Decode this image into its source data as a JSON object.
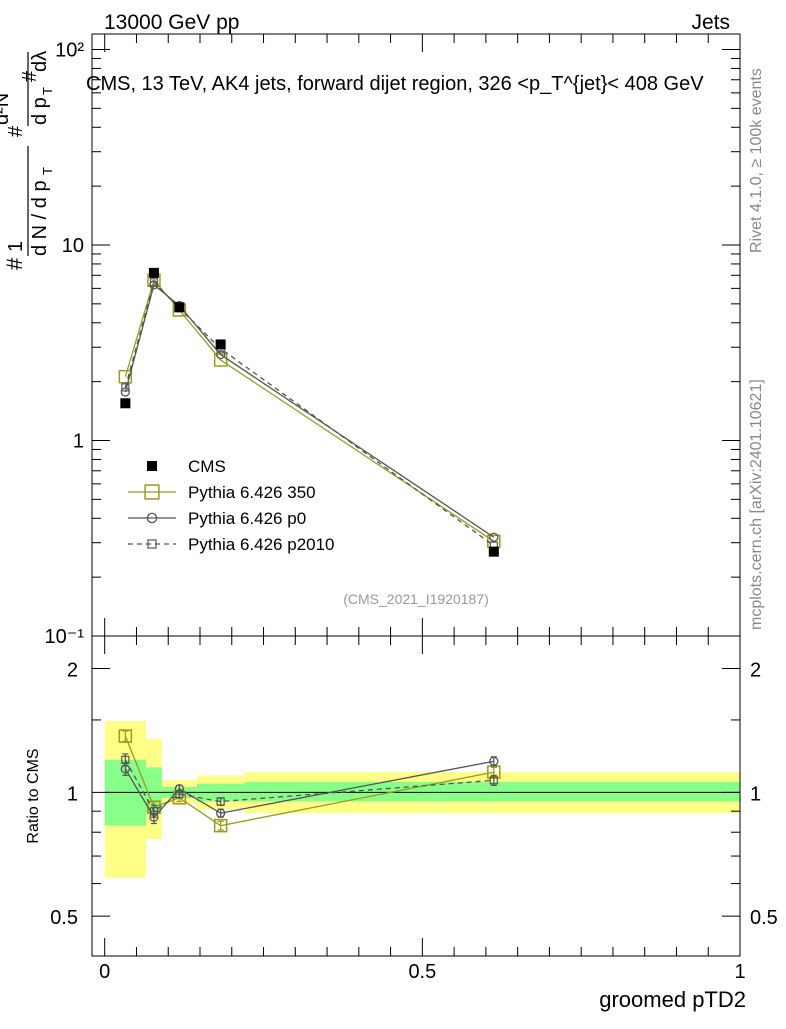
{
  "header": {
    "left": "13000 GeV pp",
    "right": "Jets"
  },
  "side": {
    "rivet": "Rivet 4.1.0, ≥ 100k events",
    "mcplots": "mcplots.cern.ch [arXiv:2401.10621]"
  },
  "colors": {
    "cms": "#000000",
    "p350": "#9a9a1e",
    "p0": "#555555",
    "p2010": "#555555",
    "band_yellow": "#ffff88",
    "band_green": "#88ff88"
  },
  "chart_data": [
    {
      "type": "scatter",
      "title": "CMS, 13 TeV, AK4 jets, forward dijet region, 326 <p_T^{jet}< 408 GeV",
      "ylabel": "1/(dN/dp_T) d²N/(dp_T dλ)",
      "yscale": "log",
      "ylim": [
        0.1,
        120
      ],
      "xlim": [
        -0.02,
        1.0
      ],
      "y_ticks": [
        {
          "v": 0.1,
          "label": "10⁻¹"
        },
        {
          "v": 1,
          "label": "1"
        },
        {
          "v": 10,
          "label": "10"
        },
        {
          "v": 100,
          "label": "10²"
        }
      ],
      "watermark": "(CMS_2021_I1920187)",
      "legend": {
        "placement": "bottom-left",
        "entries": [
          "CMS",
          "Pythia 6.426 350",
          "Pythia 6.426 p0",
          "Pythia 6.426 p2010"
        ]
      },
      "x": [
        0.0325,
        0.0775,
        0.1175,
        0.1825,
        0.6125
      ],
      "series": [
        {
          "name": "CMS",
          "style": "square-filled",
          "values": [
            1.55,
            7.2,
            4.8,
            3.1,
            0.27
          ]
        },
        {
          "name": "Pythia 6.426 350",
          "style": "square-open-solid",
          "values": [
            2.12,
            6.6,
            4.65,
            2.58,
            0.305
          ]
        },
        {
          "name": "Pythia 6.426 p0",
          "style": "circle-open-solid",
          "values": [
            1.77,
            6.25,
            4.9,
            2.75,
            0.32
          ]
        },
        {
          "name": "Pythia 6.426 p2010",
          "style": "square-small-dashed",
          "values": [
            1.87,
            6.45,
            4.75,
            2.95,
            0.29
          ]
        }
      ]
    },
    {
      "type": "scatter",
      "title": "",
      "ylabel": "Ratio to CMS",
      "xlabel": "groomed pTD2",
      "yscale": "log",
      "ylim": [
        0.4,
        2.4
      ],
      "xlim": [
        -0.02,
        1.0
      ],
      "y_ticks": [
        {
          "v": 0.5,
          "label": "0.5"
        },
        {
          "v": 1,
          "label": "1"
        },
        {
          "v": 2,
          "label": "2"
        }
      ],
      "x_ticks": [
        {
          "v": 0,
          "label": "0"
        },
        {
          "v": 0.5,
          "label": "0.5"
        },
        {
          "v": 1,
          "label": "1"
        }
      ],
      "bands": [
        {
          "x0": 0.0,
          "x1": 0.065,
          "yellow": [
            0.62,
            1.49
          ],
          "green": [
            0.83,
            1.2
          ]
        },
        {
          "x0": 0.065,
          "x1": 0.09,
          "yellow": [
            0.77,
            1.35
          ],
          "green": [
            0.89,
            1.15
          ]
        },
        {
          "x0": 0.09,
          "x1": 0.145,
          "yellow": [
            0.94,
            1.07
          ],
          "green": [
            0.97,
            1.03
          ]
        },
        {
          "x0": 0.145,
          "x1": 0.22,
          "yellow": [
            0.91,
            1.1
          ],
          "green": [
            0.95,
            1.05
          ]
        },
        {
          "x0": 0.22,
          "x1": 1.0,
          "yellow": [
            0.89,
            1.12
          ],
          "green": [
            0.95,
            1.06
          ]
        }
      ],
      "x": [
        0.0325,
        0.0775,
        0.1175,
        0.1825,
        0.6125
      ],
      "series": [
        {
          "name": "Pythia 6.426 350",
          "style": "square-open-solid",
          "values": [
            1.37,
            0.92,
            0.97,
            0.83,
            1.12
          ],
          "err": [
            0.04,
            0.03,
            0.02,
            0.02,
            0.03
          ]
        },
        {
          "name": "Pythia 6.426 p0",
          "style": "circle-open-solid",
          "values": [
            1.14,
            0.87,
            1.02,
            0.89,
            1.19
          ],
          "err": [
            0.04,
            0.03,
            0.02,
            0.02,
            0.03
          ]
        },
        {
          "name": "Pythia 6.426 p2010",
          "style": "square-small-dashed",
          "values": [
            1.2,
            0.9,
            0.99,
            0.95,
            1.07
          ],
          "err": [
            0.04,
            0.03,
            0.02,
            0.02,
            0.03
          ]
        }
      ]
    }
  ]
}
